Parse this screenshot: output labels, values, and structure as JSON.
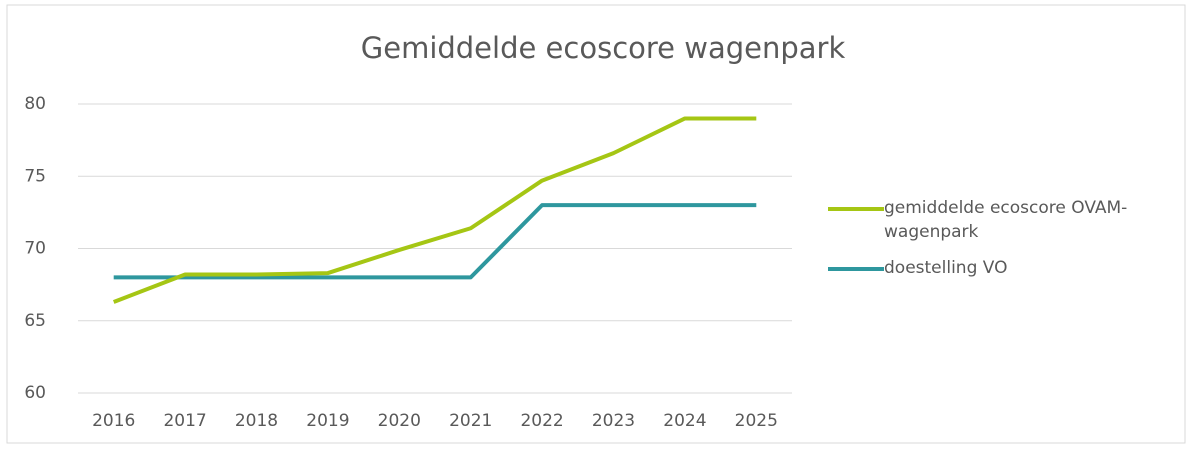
{
  "chart_data": {
    "type": "line",
    "title": "Gemiddelde ecoscore wagenpark",
    "categories": [
      "2016",
      "2017",
      "2018",
      "2019",
      "2020",
      "2021",
      "2022",
      "2023",
      "2024",
      "2025"
    ],
    "series": [
      {
        "name": "gemiddelde ecoscore OVAM-wagenpark",
        "color": "#a5c614",
        "values": [
          66.3,
          68.2,
          68.2,
          68.3,
          69.9,
          71.4,
          74.7,
          76.6,
          79,
          79
        ]
      },
      {
        "name": "doestelling VO",
        "color": "#2e979e",
        "values": [
          68,
          68,
          68,
          68,
          68,
          68,
          73,
          73,
          73,
          73
        ]
      }
    ],
    "ylim": [
      60,
      80
    ],
    "yticks": [
      60,
      65,
      70,
      75,
      80
    ],
    "grid": true,
    "legend": "right"
  }
}
